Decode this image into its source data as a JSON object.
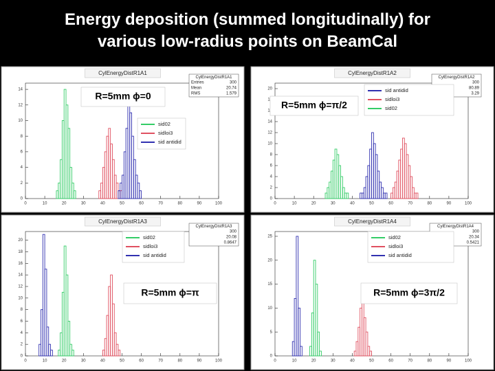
{
  "title": "Energy deposition (summed longitudinally) for various low-radius points on BeamCal",
  "chart_data": [
    {
      "type": "histogram",
      "title": "CylEnergyDistR1A1",
      "annotation": "R=5mm ϕ=0",
      "stats_title": "CylEnergyDistR1A1",
      "stats": [
        {
          "label": "Entries",
          "value": 300
        },
        {
          "label": "Mean",
          "value": 20.74
        },
        {
          "label": "RMS",
          "value": 1.579
        }
      ],
      "xlim": [
        0,
        100
      ],
      "xticks": [
        0,
        10,
        20,
        30,
        40,
        50,
        60,
        70,
        80,
        90,
        100
      ],
      "ylim": [
        0,
        14.8
      ],
      "yticks": [
        0,
        2,
        4,
        6,
        8,
        10,
        12,
        14
      ],
      "series": [
        {
          "name": "sid02",
          "color": "#33cc66",
          "bins": [
            16,
            17,
            18,
            19,
            20,
            21,
            22,
            23,
            24,
            25,
            26
          ],
          "values": [
            1,
            2,
            5,
            10,
            14,
            12,
            9,
            4,
            2,
            1
          ]
        },
        {
          "name": "sidloi3",
          "color": "#e05060",
          "bins": [
            38,
            39,
            40,
            41,
            42,
            43,
            44,
            45,
            46,
            47,
            48,
            49,
            50
          ],
          "values": [
            1,
            2,
            4,
            6,
            8,
            9,
            7,
            5,
            3,
            2,
            1,
            1
          ]
        },
        {
          "name": "sid antidid",
          "color": "#3030b0",
          "bins": [
            48,
            49,
            50,
            51,
            52,
            53,
            54,
            55,
            56,
            57,
            58,
            59,
            60
          ],
          "values": [
            1,
            2,
            3,
            6,
            9,
            13,
            11,
            8,
            5,
            3,
            2,
            1
          ]
        }
      ]
    },
    {
      "type": "histogram",
      "title": "CylEnergyDistR1A2",
      "annotation": "R=5mm ϕ=π/2",
      "stats_title": "CylEnergyDistR1A2",
      "stats": [
        {
          "value": 300
        },
        {
          "value": 80.89
        },
        {
          "value": 3.29
        }
      ],
      "xlim": [
        0,
        100
      ],
      "xticks": [
        0,
        10,
        20,
        30,
        40,
        50,
        60,
        70,
        80,
        90,
        100
      ],
      "ylim": [
        0,
        21
      ],
      "yticks": [
        0,
        2,
        4,
        6,
        8,
        10,
        12,
        14,
        16,
        18,
        20
      ],
      "series": [
        {
          "name": "sid antidid",
          "color": "#3030b0",
          "bins": [
            44,
            45,
            46,
            47,
            48,
            49,
            50,
            51,
            52,
            53,
            54,
            55,
            56,
            57,
            58
          ],
          "values": [
            1,
            1,
            2,
            4,
            6,
            9,
            12,
            10,
            8,
            5,
            3,
            2,
            1,
            1
          ]
        },
        {
          "name": "sidloi3",
          "color": "#e05060",
          "bins": [
            60,
            61,
            62,
            63,
            64,
            65,
            66,
            67,
            68,
            69,
            70,
            71,
            72,
            73,
            74
          ],
          "values": [
            1,
            2,
            3,
            5,
            7,
            9,
            11,
            10,
            8,
            6,
            4,
            2,
            1,
            1
          ]
        },
        {
          "name": "sid02",
          "color": "#33cc66",
          "bins": [
            26,
            27,
            28,
            29,
            30,
            31,
            32,
            33,
            34,
            35,
            36,
            37,
            38
          ],
          "values": [
            1,
            2,
            3,
            5,
            7,
            9,
            8,
            6,
            4,
            2,
            1,
            1
          ]
        }
      ]
    },
    {
      "type": "histogram",
      "title": "CylEnergyDistR1A3",
      "annotation": "R=5mm ϕ=π",
      "stats_title": "CylEnergyDistR1A3",
      "stats": [
        {
          "value": 300
        },
        {
          "value": 20.08
        },
        {
          "value": 0.8647
        }
      ],
      "xlim": [
        0,
        100
      ],
      "xticks": [
        0,
        10,
        20,
        30,
        40,
        50,
        60,
        70,
        80,
        90,
        100
      ],
      "ylim": [
        0,
        21.5
      ],
      "yticks": [
        0,
        2,
        4,
        6,
        8,
        10,
        12,
        14,
        16,
        18,
        20
      ],
      "series": [
        {
          "name": "sid02",
          "color": "#33cc66",
          "bins": [
            17,
            18,
            19,
            20,
            21,
            22,
            23,
            24,
            25
          ],
          "values": [
            1,
            4,
            11,
            19,
            14,
            6,
            2,
            1
          ]
        },
        {
          "name": "sidloi3",
          "color": "#e05060",
          "bins": [
            40,
            41,
            42,
            43,
            44,
            45,
            46,
            47,
            48,
            49
          ],
          "values": [
            1,
            3,
            7,
            12,
            14,
            9,
            4,
            2,
            1
          ]
        },
        {
          "name": "sid antidid",
          "color": "#3030b0",
          "bins": [
            7,
            8,
            9,
            10,
            11,
            12,
            13,
            14
          ],
          "values": [
            2,
            8,
            21,
            15,
            5,
            2,
            1
          ]
        }
      ]
    },
    {
      "type": "histogram",
      "title": "CylEnergyDistR1A4",
      "annotation": "R=5mm ϕ=3π/2",
      "stats_title": "CylEnergyDistR1A4",
      "stats": [
        {
          "value": 300
        },
        {
          "value": 20.34
        },
        {
          "value": 0.5421
        }
      ],
      "xlim": [
        0,
        100
      ],
      "xticks": [
        0,
        10,
        20,
        30,
        40,
        50,
        60,
        70,
        80,
        90,
        100
      ],
      "ylim": [
        0,
        26
      ],
      "yticks": [
        0,
        5,
        10,
        15,
        20,
        25
      ],
      "series": [
        {
          "name": "sid02",
          "color": "#33cc66",
          "bins": [
            18,
            19,
            20,
            21,
            22,
            23,
            24
          ],
          "values": [
            2,
            9,
            20,
            15,
            5,
            1
          ]
        },
        {
          "name": "sidloi3",
          "color": "#e05060",
          "bins": [
            41,
            42,
            43,
            44,
            45,
            46,
            47,
            48,
            49,
            50
          ],
          "values": [
            1,
            3,
            6,
            10,
            12,
            8,
            5,
            2,
            1
          ]
        },
        {
          "name": "sid antidid",
          "color": "#3030b0",
          "bins": [
            9,
            10,
            11,
            12,
            13,
            14
          ],
          "values": [
            3,
            12,
            25,
            10,
            2
          ]
        }
      ]
    }
  ]
}
